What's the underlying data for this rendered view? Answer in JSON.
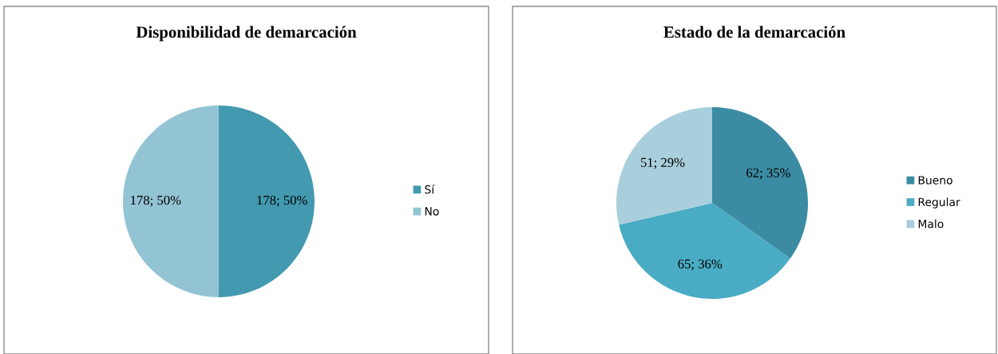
{
  "chart_data": [
    {
      "type": "pie",
      "title": "Disponibilidad de demarcación",
      "categories": [
        "Sí",
        "No"
      ],
      "values": [
        178,
        178
      ],
      "colors": [
        "#4299b0",
        "#93c4d4"
      ],
      "value_labels": [
        "178; 50%",
        "178; 50%"
      ],
      "legend": "right"
    },
    {
      "type": "pie",
      "title": "Estado de la demarcación",
      "categories": [
        "Bueno",
        "Regular",
        "Malo"
      ],
      "values": [
        62,
        65,
        51
      ],
      "colors": [
        "#3b8ba3",
        "#4aabc5",
        "#a9cfdc"
      ],
      "value_labels": [
        "62; 35%",
        "65; 36%",
        "51; 29%"
      ],
      "legend": "right"
    }
  ]
}
